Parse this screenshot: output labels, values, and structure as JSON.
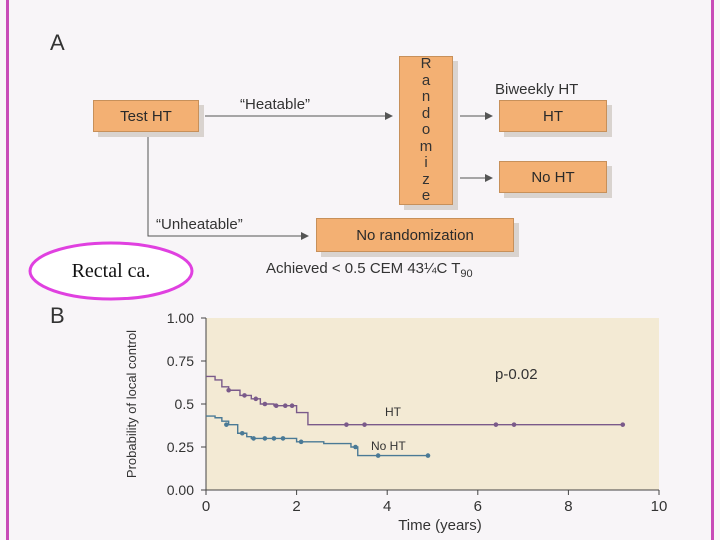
{
  "panel_a": {
    "letter": "A",
    "test_box": "Test HT",
    "heatable": "“Heatable”",
    "unheatable": "“Unheatable”",
    "randomize_letters": [
      "R",
      "a",
      "n",
      "d",
      "o",
      "m",
      "i",
      "z",
      "e"
    ],
    "biweekly": "Biweekly HT",
    "ht_box": "HT",
    "noht_box": "No HT",
    "no_randomization": "No randomization",
    "achieved": "Achieved < 0.5 CEM 43¼C T",
    "achieved_sub": "90"
  },
  "callout": {
    "text": "Rectal ca.",
    "outline_color": "#e040e0"
  },
  "panel_b": {
    "letter": "B"
  },
  "chart_data": {
    "type": "line",
    "title": "",
    "xlabel": "Time (years)",
    "ylabel": "Probability of local control",
    "xlim": [
      0,
      10
    ],
    "ylim": [
      0,
      1
    ],
    "xticks": [
      0,
      2,
      4,
      6,
      8,
      10
    ],
    "yticks": [
      0,
      0.25,
      0.5,
      0.75,
      1
    ],
    "ytick_labels": [
      "0.00",
      "0.25",
      "0.5",
      "0.75",
      "1.00"
    ],
    "grid": false,
    "annotation": "p-0.02",
    "background": "#f3ead4",
    "series": [
      {
        "name": "HT",
        "color": "#7a5a8a",
        "step": [
          [
            0,
            0.66
          ],
          [
            0.2,
            0.64
          ],
          [
            0.35,
            0.6
          ],
          [
            0.5,
            0.58
          ],
          [
            0.75,
            0.55
          ],
          [
            1.0,
            0.53
          ],
          [
            1.2,
            0.5
          ],
          [
            1.5,
            0.49
          ],
          [
            2.0,
            0.45
          ],
          [
            2.25,
            0.38
          ],
          [
            3.0,
            0.38
          ],
          [
            9.2,
            0.38
          ]
        ],
        "censor": [
          [
            0.5,
            0.58
          ],
          [
            0.85,
            0.55
          ],
          [
            1.1,
            0.53
          ],
          [
            1.3,
            0.5
          ],
          [
            1.55,
            0.49
          ],
          [
            1.75,
            0.49
          ],
          [
            1.9,
            0.49
          ],
          [
            3.1,
            0.38
          ],
          [
            3.5,
            0.38
          ],
          [
            6.4,
            0.38
          ],
          [
            6.8,
            0.38
          ],
          [
            9.2,
            0.38
          ]
        ]
      },
      {
        "name": "No HT",
        "color": "#4a7a96",
        "step": [
          [
            0,
            0.43
          ],
          [
            0.2,
            0.42
          ],
          [
            0.35,
            0.4
          ],
          [
            0.5,
            0.38
          ],
          [
            0.7,
            0.33
          ],
          [
            0.9,
            0.31
          ],
          [
            1.0,
            0.3
          ],
          [
            1.2,
            0.3
          ],
          [
            1.8,
            0.3
          ],
          [
            2.0,
            0.28
          ],
          [
            2.6,
            0.27
          ],
          [
            3.2,
            0.25
          ],
          [
            3.35,
            0.2
          ],
          [
            4.9,
            0.2
          ]
        ],
        "censor": [
          [
            0.45,
            0.38
          ],
          [
            0.8,
            0.33
          ],
          [
            1.05,
            0.3
          ],
          [
            1.3,
            0.3
          ],
          [
            1.5,
            0.3
          ],
          [
            1.7,
            0.3
          ],
          [
            2.1,
            0.28
          ],
          [
            3.3,
            0.25
          ],
          [
            3.8,
            0.2
          ],
          [
            4.9,
            0.2
          ]
        ]
      }
    ]
  }
}
